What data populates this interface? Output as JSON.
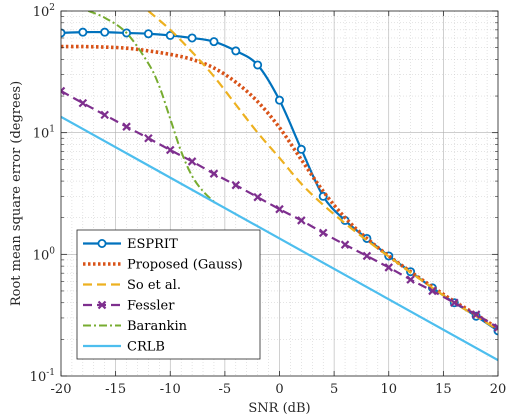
{
  "chart_data": {
    "type": "line",
    "xlabel": "SNR (dB)",
    "ylabel": "Root mean square error (degrees)",
    "xlim": [
      -20,
      20
    ],
    "ylim": [
      0.1,
      100
    ],
    "yscale": "log",
    "grid": true,
    "legend_position": "bottom-left",
    "x_ticks": [
      -20,
      -15,
      -10,
      -5,
      0,
      5,
      10,
      15,
      20
    ],
    "x_tick_labels": [
      "-20",
      "-15",
      "-10",
      "-5",
      "0",
      "5",
      "10",
      "15",
      "20"
    ],
    "y_ticks": [
      0.1,
      1,
      10,
      100
    ],
    "y_tick_labels": [
      {
        "base": "10",
        "exp": "-1"
      },
      {
        "base": "10",
        "exp": "0"
      },
      {
        "base": "10",
        "exp": "1"
      },
      {
        "base": "10",
        "exp": "2"
      }
    ],
    "series": [
      {
        "name": "ESPRIT",
        "color": "#0072bd",
        "style": "solid",
        "marker": "circle",
        "x": [
          -20,
          -18,
          -16,
          -14,
          -12,
          -10,
          -8,
          -6,
          -4,
          -2,
          0,
          2,
          4,
          6,
          8,
          10,
          12,
          14,
          16,
          18,
          20
        ],
        "y": [
          66,
          67,
          67,
          66,
          65,
          63,
          60,
          56,
          47,
          36,
          18.5,
          7.3,
          3.0,
          1.9,
          1.35,
          0.97,
          0.72,
          0.53,
          0.4,
          0.31,
          0.235
        ]
      },
      {
        "name": "Proposed (Gauss)",
        "color": "#d95319",
        "style": "dotted",
        "x": [
          -20,
          -18,
          -16,
          -14,
          -12,
          -10,
          -8,
          -6,
          -4,
          -2,
          0,
          2,
          4,
          6,
          8,
          10,
          12,
          14,
          16,
          18,
          20
        ],
        "y": [
          51,
          51,
          50.5,
          49.5,
          47,
          44,
          40,
          34,
          26,
          18,
          11,
          6.0,
          3.3,
          2.0,
          1.35,
          0.97,
          0.72,
          0.54,
          0.41,
          0.32,
          0.245
        ]
      },
      {
        "name": "So et al.",
        "color": "#edb120",
        "style": "dashed",
        "x": [
          -12,
          -10,
          -8,
          -6,
          -4,
          -2,
          0,
          2,
          4,
          6,
          8,
          10,
          12,
          14,
          16,
          18,
          20
        ],
        "y": [
          100,
          70,
          46,
          29,
          17,
          10,
          6.2,
          3.8,
          2.55,
          1.8,
          1.3,
          0.96,
          0.71,
          0.53,
          0.4,
          0.31,
          0.24
        ]
      },
      {
        "name": "Fessler",
        "color": "#7e2f8e",
        "style": "dashed",
        "marker": "x",
        "x": [
          -20,
          -18,
          -16,
          -14,
          -12,
          -10,
          -8,
          -6,
          -4,
          -2,
          0,
          2,
          4,
          6,
          8,
          10,
          12,
          14,
          16,
          18,
          20
        ],
        "y": [
          22,
          17.5,
          14,
          11.2,
          9.0,
          7.2,
          5.8,
          4.6,
          3.7,
          2.95,
          2.35,
          1.9,
          1.5,
          1.2,
          0.97,
          0.78,
          0.62,
          0.5,
          0.4,
          0.32,
          0.25
        ]
      },
      {
        "name": "Barankin",
        "color": "#77ac30",
        "style": "dashdot",
        "x": [
          -17.5,
          -16,
          -14,
          -12,
          -11,
          -10,
          -9,
          -8,
          -7,
          -6
        ],
        "y": [
          100,
          88,
          66,
          37,
          24,
          13,
          7.0,
          4.4,
          3.3,
          2.7
        ]
      },
      {
        "name": "CRLB",
        "color": "#4dbeee",
        "style": "solid",
        "x": [
          -20,
          20
        ],
        "y": [
          13.5,
          0.135
        ]
      }
    ]
  }
}
